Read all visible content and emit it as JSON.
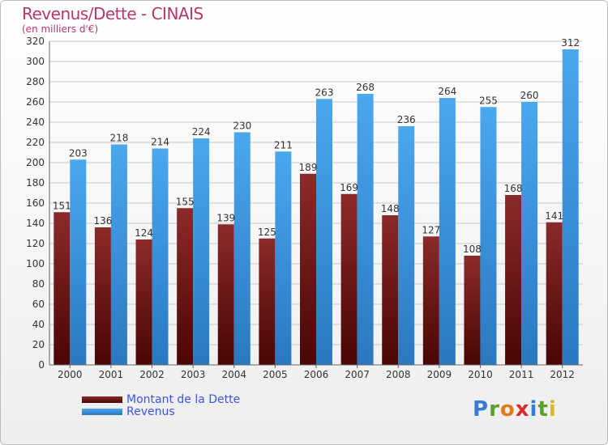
{
  "title": "Revenus/Dette - CINAIS",
  "subtitle": "(en milliers d'€)",
  "legend": {
    "debt_label": "Montant de la Dette",
    "revenue_label": "Revenus"
  },
  "colors": {
    "debt": "#8b1a1a",
    "revenue": "#3d9be0",
    "title": "#b5386a"
  },
  "logo": {
    "text": "Proxiti",
    "letters": [
      {
        "ch": "P",
        "color": "#3a7bd5"
      },
      {
        "ch": "r",
        "color": "#5aa02c"
      },
      {
        "ch": "o",
        "color": "#e07b1a"
      },
      {
        "ch": "x",
        "color": "#d62e2e"
      },
      {
        "ch": "i",
        "color": "#3a7bd5"
      },
      {
        "ch": "t",
        "color": "#5aa02c"
      },
      {
        "ch": "i",
        "color": "#e0b81a"
      }
    ]
  },
  "chart_data": {
    "type": "bar",
    "title": "Revenus/Dette - CINAIS",
    "subtitle": "(en milliers d'€)",
    "categories": [
      "2000",
      "2001",
      "2002",
      "2003",
      "2004",
      "2005",
      "2006",
      "2007",
      "2008",
      "2009",
      "2010",
      "2011",
      "2012"
    ],
    "series": [
      {
        "name": "Montant de la Dette",
        "values": [
          151,
          136,
          124,
          155,
          139,
          125,
          189,
          169,
          148,
          127,
          108,
          168,
          141
        ]
      },
      {
        "name": "Revenus",
        "values": [
          203,
          218,
          214,
          224,
          230,
          211,
          263,
          268,
          236,
          264,
          255,
          260,
          312
        ]
      }
    ],
    "ylim": [
      0,
      320
    ],
    "yticks": [
      0,
      20,
      40,
      60,
      80,
      100,
      120,
      140,
      160,
      180,
      200,
      220,
      240,
      260,
      280,
      300,
      320
    ],
    "grid": true,
    "legend_position": "bottom-left"
  }
}
